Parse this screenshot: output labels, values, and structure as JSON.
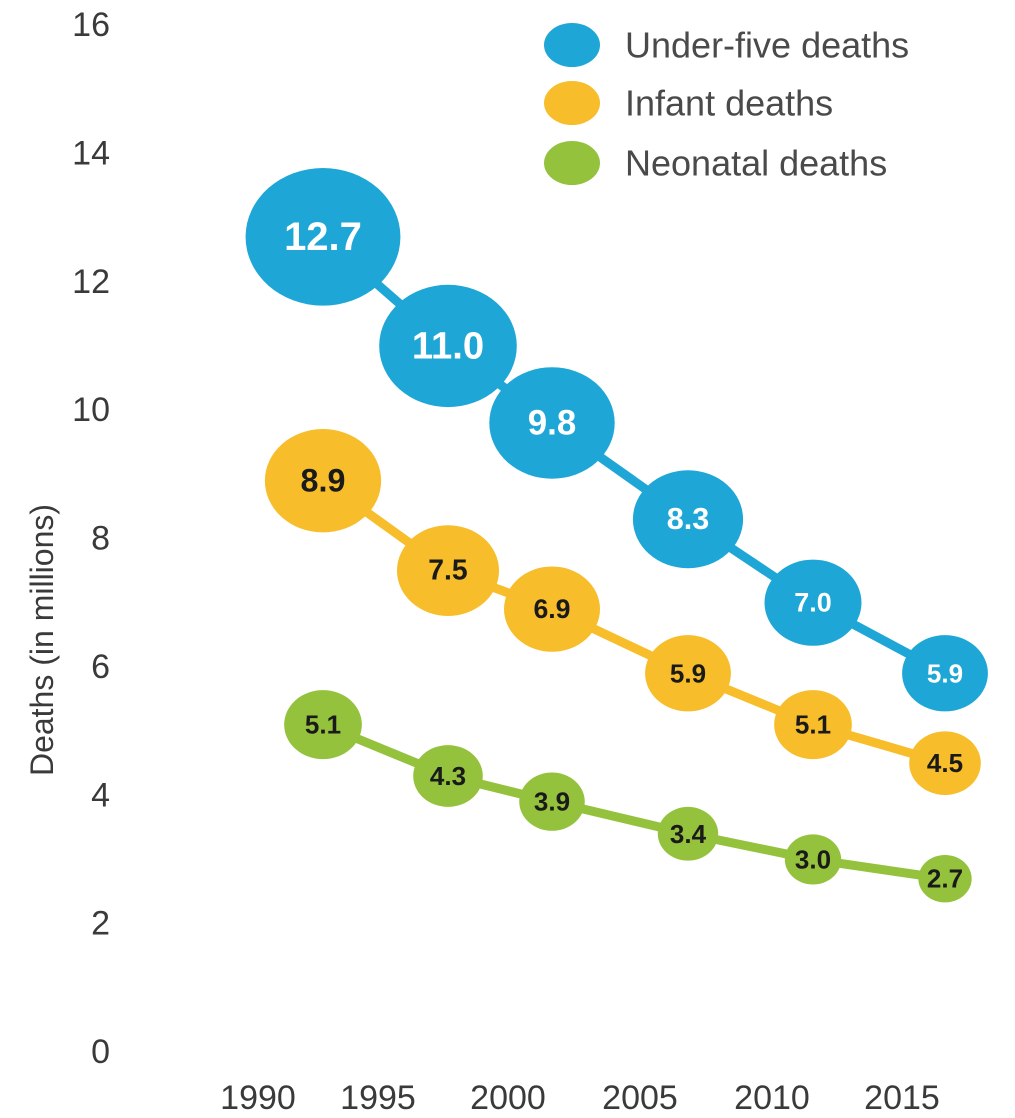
{
  "chart_data": {
    "type": "line",
    "title": "",
    "xlabel": "",
    "ylabel": "Deaths (in millions)",
    "categories": [
      "1990",
      "1995",
      "2000",
      "2005",
      "2010",
      "2015"
    ],
    "ylim": [
      0,
      16
    ],
    "yticks": [
      "0",
      "2",
      "4",
      "6",
      "8",
      "10",
      "12",
      "14",
      "16"
    ],
    "grid": false,
    "legend_position": "top-right",
    "series": [
      {
        "name": "Under-five deaths",
        "color": "#1ea7d6",
        "text_color": "#ffffff",
        "values": [
          12.7,
          11.0,
          9.8,
          8.3,
          7.0,
          5.9
        ],
        "labels": [
          "12.7",
          "11.0",
          "9.8",
          "8.3",
          "7.0",
          "5.9"
        ]
      },
      {
        "name": "Infant deaths",
        "color": "#f7bd2a",
        "text_color": "#1a1a1a",
        "values": [
          8.9,
          7.5,
          6.9,
          5.9,
          5.1,
          4.5
        ],
        "labels": [
          "8.9",
          "7.5",
          "6.9",
          "5.9",
          "5.1",
          "4.5"
        ]
      },
      {
        "name": "Neonatal deaths",
        "color": "#94c23d",
        "text_color": "#1a1a1a",
        "values": [
          5.1,
          4.3,
          3.9,
          3.4,
          3.0,
          2.7
        ],
        "labels": [
          "5.1",
          "4.3",
          "3.9",
          "3.4",
          "3.0",
          "2.7"
        ]
      }
    ]
  }
}
